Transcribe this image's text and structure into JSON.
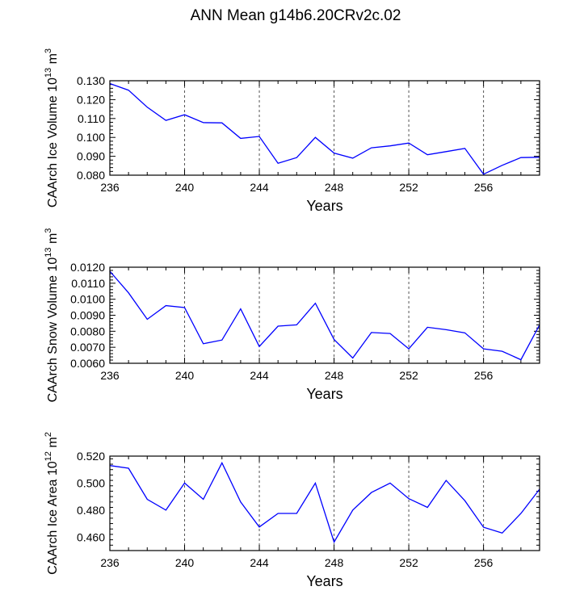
{
  "title": "ANN Mean g14b6.20CRv2c.02",
  "colors": {
    "line": "#0000ff",
    "axis": "#000000",
    "grid": "#555555"
  },
  "chart_data": [
    {
      "type": "line",
      "ylabel": "CAArch Ice Volume 10",
      "ylabel_exp": "13",
      "ylabel_unit": " m",
      "ylabel_unit_exp": "3",
      "xlabel": "Years",
      "xlim": [
        236,
        259
      ],
      "ylim": [
        0.08,
        0.13
      ],
      "xticks": [
        236,
        240,
        244,
        248,
        252,
        256
      ],
      "xtick_labels": [
        "236",
        "240",
        "244",
        "248",
        "252",
        "256"
      ],
      "yticks": [
        0.08,
        0.09,
        0.1,
        0.11,
        0.12,
        0.13
      ],
      "ytick_labels": [
        "0.080",
        "0.090",
        "0.100",
        "0.110",
        "0.120",
        "0.130"
      ],
      "x": [
        236,
        237,
        238,
        239,
        240,
        241,
        242,
        243,
        244,
        245,
        246,
        247,
        248,
        249,
        250,
        251,
        252,
        253,
        254,
        255,
        256,
        257,
        258,
        259
      ],
      "values": [
        0.1285,
        0.125,
        0.116,
        0.109,
        0.112,
        0.1078,
        0.1077,
        0.0995,
        0.1005,
        0.0863,
        0.0893,
        0.1,
        0.0917,
        0.089,
        0.0945,
        0.0955,
        0.097,
        0.0908,
        0.0925,
        0.0942,
        0.0805,
        0.0852,
        0.0893,
        0.0895
      ]
    },
    {
      "type": "line",
      "ylabel": "CAArch Snow Volume 10",
      "ylabel_exp": "13",
      "ylabel_unit": " m",
      "ylabel_unit_exp": "3",
      "xlabel": "Years",
      "xlim": [
        236,
        259
      ],
      "ylim": [
        0.006,
        0.012
      ],
      "xticks": [
        236,
        240,
        244,
        248,
        252,
        256
      ],
      "xtick_labels": [
        "236",
        "240",
        "244",
        "248",
        "252",
        "256"
      ],
      "yticks": [
        0.006,
        0.007,
        0.008,
        0.009,
        0.01,
        0.011,
        0.012
      ],
      "ytick_labels": [
        "0.0060",
        "0.0070",
        "0.0080",
        "0.0090",
        "0.0100",
        "0.0110",
        "0.0120"
      ],
      "x": [
        236,
        237,
        238,
        239,
        240,
        241,
        242,
        243,
        244,
        245,
        246,
        247,
        248,
        249,
        250,
        251,
        252,
        253,
        254,
        255,
        256,
        257,
        258,
        259
      ],
      "values": [
        0.01175,
        0.0104,
        0.00875,
        0.0096,
        0.00948,
        0.00722,
        0.00745,
        0.0094,
        0.00705,
        0.00832,
        0.0084,
        0.00975,
        0.00748,
        0.00633,
        0.00792,
        0.00786,
        0.0069,
        0.00825,
        0.0081,
        0.0079,
        0.0069,
        0.00675,
        0.00622,
        0.0084
      ]
    },
    {
      "type": "line",
      "ylabel": "CAArch Ice Area 10",
      "ylabel_exp": "12",
      "ylabel_unit": " m",
      "ylabel_unit_exp": "2",
      "xlabel": "Years",
      "xlim": [
        236,
        259
      ],
      "ylim": [
        0.45,
        0.52
      ],
      "xticks": [
        236,
        240,
        244,
        248,
        252,
        256
      ],
      "xtick_labels": [
        "236",
        "240",
        "244",
        "248",
        "252",
        "256"
      ],
      "yticks": [
        0.46,
        0.48,
        0.5,
        0.52
      ],
      "ytick_labels": [
        "0.460",
        "0.480",
        "0.500",
        "0.520"
      ],
      "x": [
        236,
        237,
        238,
        239,
        240,
        241,
        242,
        243,
        244,
        245,
        246,
        247,
        248,
        249,
        250,
        251,
        252,
        253,
        254,
        255,
        256,
        257,
        258,
        259
      ],
      "values": [
        0.513,
        0.511,
        0.488,
        0.48,
        0.5,
        0.488,
        0.515,
        0.486,
        0.4675,
        0.4775,
        0.4775,
        0.5,
        0.4563,
        0.48,
        0.493,
        0.5,
        0.4885,
        0.482,
        0.502,
        0.487,
        0.4673,
        0.463,
        0.4775,
        0.4955
      ]
    }
  ]
}
